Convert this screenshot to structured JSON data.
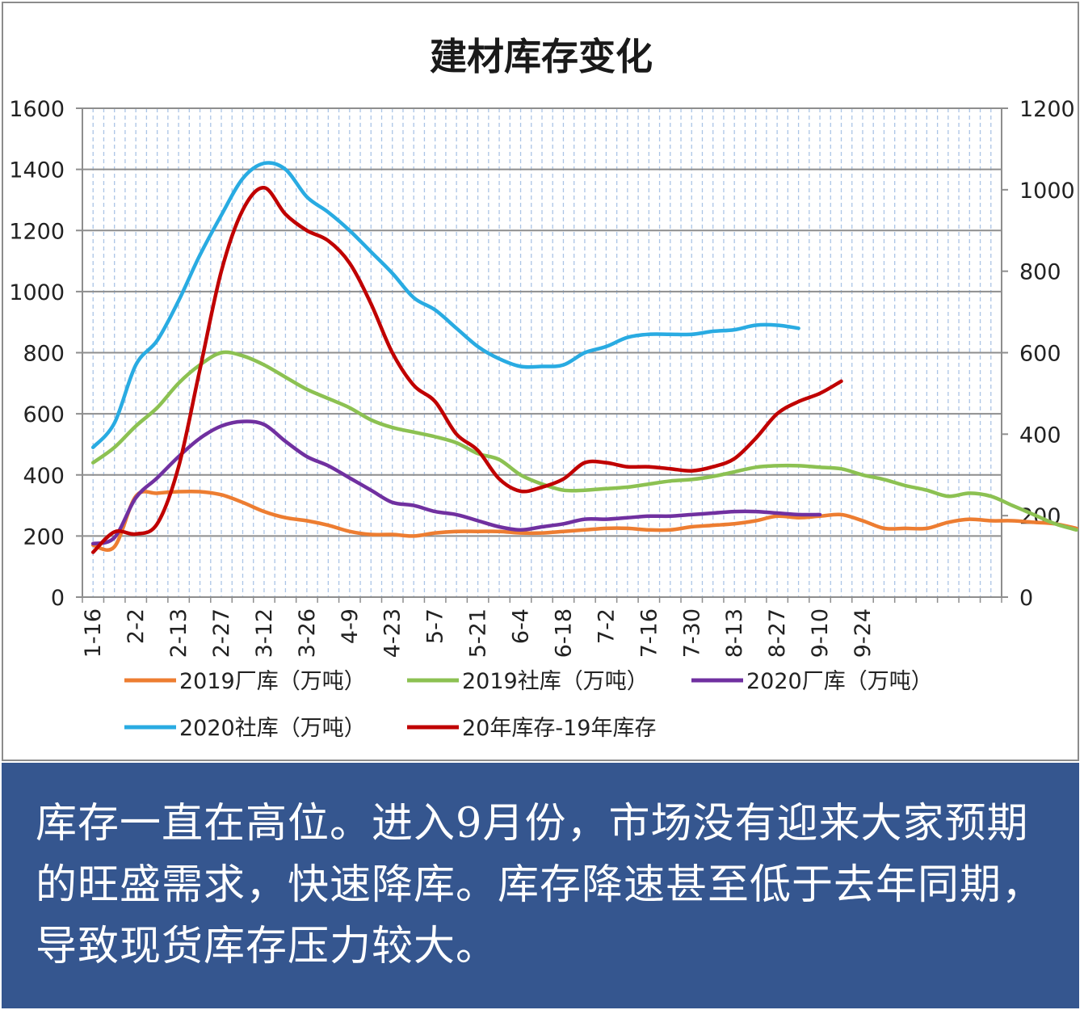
{
  "chart_data": {
    "type": "line",
    "title": "建材库存变化",
    "x_tick_labels": [
      "1-16",
      "2-2",
      "2-13",
      "2-27",
      "3-12",
      "3-26",
      "4-9",
      "4-23",
      "5-7",
      "5-21",
      "6-4",
      "6-18",
      "7-2",
      "7-16",
      "7-30",
      "8-13",
      "8-27",
      "9-10",
      "9-24"
    ],
    "y_left": {
      "ylim": [
        0,
        1600
      ],
      "ticks": [
        0,
        200,
        400,
        600,
        800,
        1000,
        1200,
        1400,
        1600
      ]
    },
    "y_right": {
      "ylim": [
        0,
        1200
      ],
      "ticks": [
        0,
        200,
        400,
        600,
        800,
        1000,
        1200
      ]
    },
    "x_count": 43,
    "series": [
      {
        "name": "2019厂库（万吨）",
        "color": "#ed7d31",
        "axis": "left",
        "values": [
          170,
          165,
          330,
          340,
          345,
          345,
          335,
          310,
          280,
          260,
          250,
          235,
          215,
          205,
          205,
          200,
          210,
          215,
          215,
          215,
          210,
          210,
          215,
          220,
          225,
          225,
          220,
          220,
          230,
          235,
          240,
          250,
          265,
          260,
          265,
          270,
          250,
          225,
          225,
          225,
          245,
          255,
          250,
          250,
          245,
          240,
          225
        ]
      },
      {
        "name": "2019社库（万吨）",
        "color": "#8cc152",
        "axis": "left",
        "values": [
          440,
          490,
          560,
          620,
          700,
          760,
          800,
          790,
          760,
          720,
          680,
          650,
          620,
          580,
          555,
          540,
          525,
          505,
          470,
          450,
          400,
          370,
          350,
          350,
          355,
          360,
          370,
          380,
          385,
          395,
          410,
          425,
          430,
          430,
          425,
          420,
          400,
          385,
          365,
          350,
          330,
          340,
          330,
          300,
          270,
          240,
          220
        ]
      },
      {
        "name": "2020厂库（万吨）",
        "color": "#7030a0",
        "axis": "left",
        "values": [
          175,
          195,
          325,
          390,
          460,
          520,
          560,
          575,
          565,
          510,
          460,
          430,
          390,
          350,
          310,
          300,
          280,
          270,
          250,
          230,
          220,
          230,
          240,
          255,
          255,
          260,
          265,
          265,
          270,
          275,
          280,
          280,
          275,
          270,
          270
        ]
      },
      {
        "name": "2020社库（万吨）",
        "color": "#29abe2",
        "axis": "left",
        "values": [
          490,
          570,
          760,
          840,
          970,
          1120,
          1250,
          1370,
          1420,
          1400,
          1310,
          1260,
          1200,
          1130,
          1060,
          980,
          940,
          880,
          820,
          780,
          755,
          755,
          760,
          800,
          820,
          850,
          860,
          860,
          860,
          870,
          875,
          890,
          890,
          880
        ]
      },
      {
        "name": "20年库存-19年库存",
        "color": "#c00000",
        "axis": "right",
        "values": [
          110,
          160,
          155,
          180,
          320,
          560,
          800,
          950,
          1005,
          940,
          900,
          875,
          820,
          720,
          600,
          520,
          480,
          400,
          360,
          290,
          260,
          270,
          290,
          330,
          330,
          320,
          320,
          315,
          310,
          320,
          340,
          390,
          450,
          480,
          500,
          530
        ]
      }
    ],
    "legend": {
      "placement": "bottom"
    }
  },
  "caption": "库存一直在高位。进入9月份，市场没有迎来大家预期的旺盛需求，快速降库。库存降速甚至低于去年同期，导致现货库存压力较大。"
}
